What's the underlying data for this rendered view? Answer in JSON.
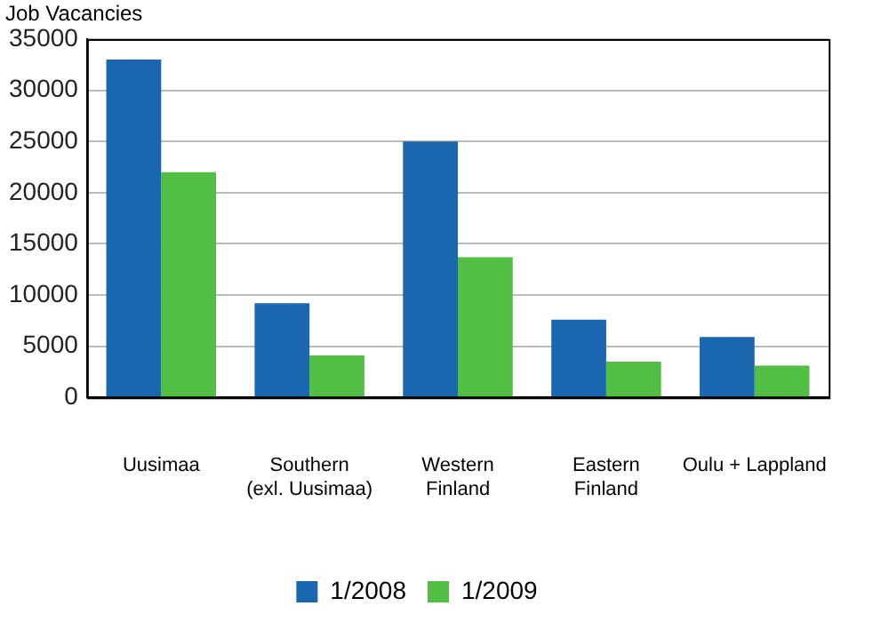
{
  "chart_data": {
    "type": "bar",
    "ylabel": "Job Vacancies",
    "categories": [
      "Uusimaa",
      "Southern\n(exl. Uusimaa)",
      "Western\nFinland",
      "Eastern\nFinland",
      "Oulu + Lappland"
    ],
    "series": [
      {
        "name": "1/2008",
        "color": "#1a67b0",
        "values": [
          33000,
          9200,
          25000,
          7600,
          5900
        ]
      },
      {
        "name": "1/2009",
        "color": "#52be43",
        "values": [
          22000,
          4100,
          13700,
          3500,
          3100
        ]
      }
    ],
    "ylim": [
      0,
      35000
    ],
    "yticks": [
      0,
      5000,
      10000,
      15000,
      20000,
      25000,
      30000,
      35000
    ],
    "grid": "y",
    "legend": "bottom"
  }
}
